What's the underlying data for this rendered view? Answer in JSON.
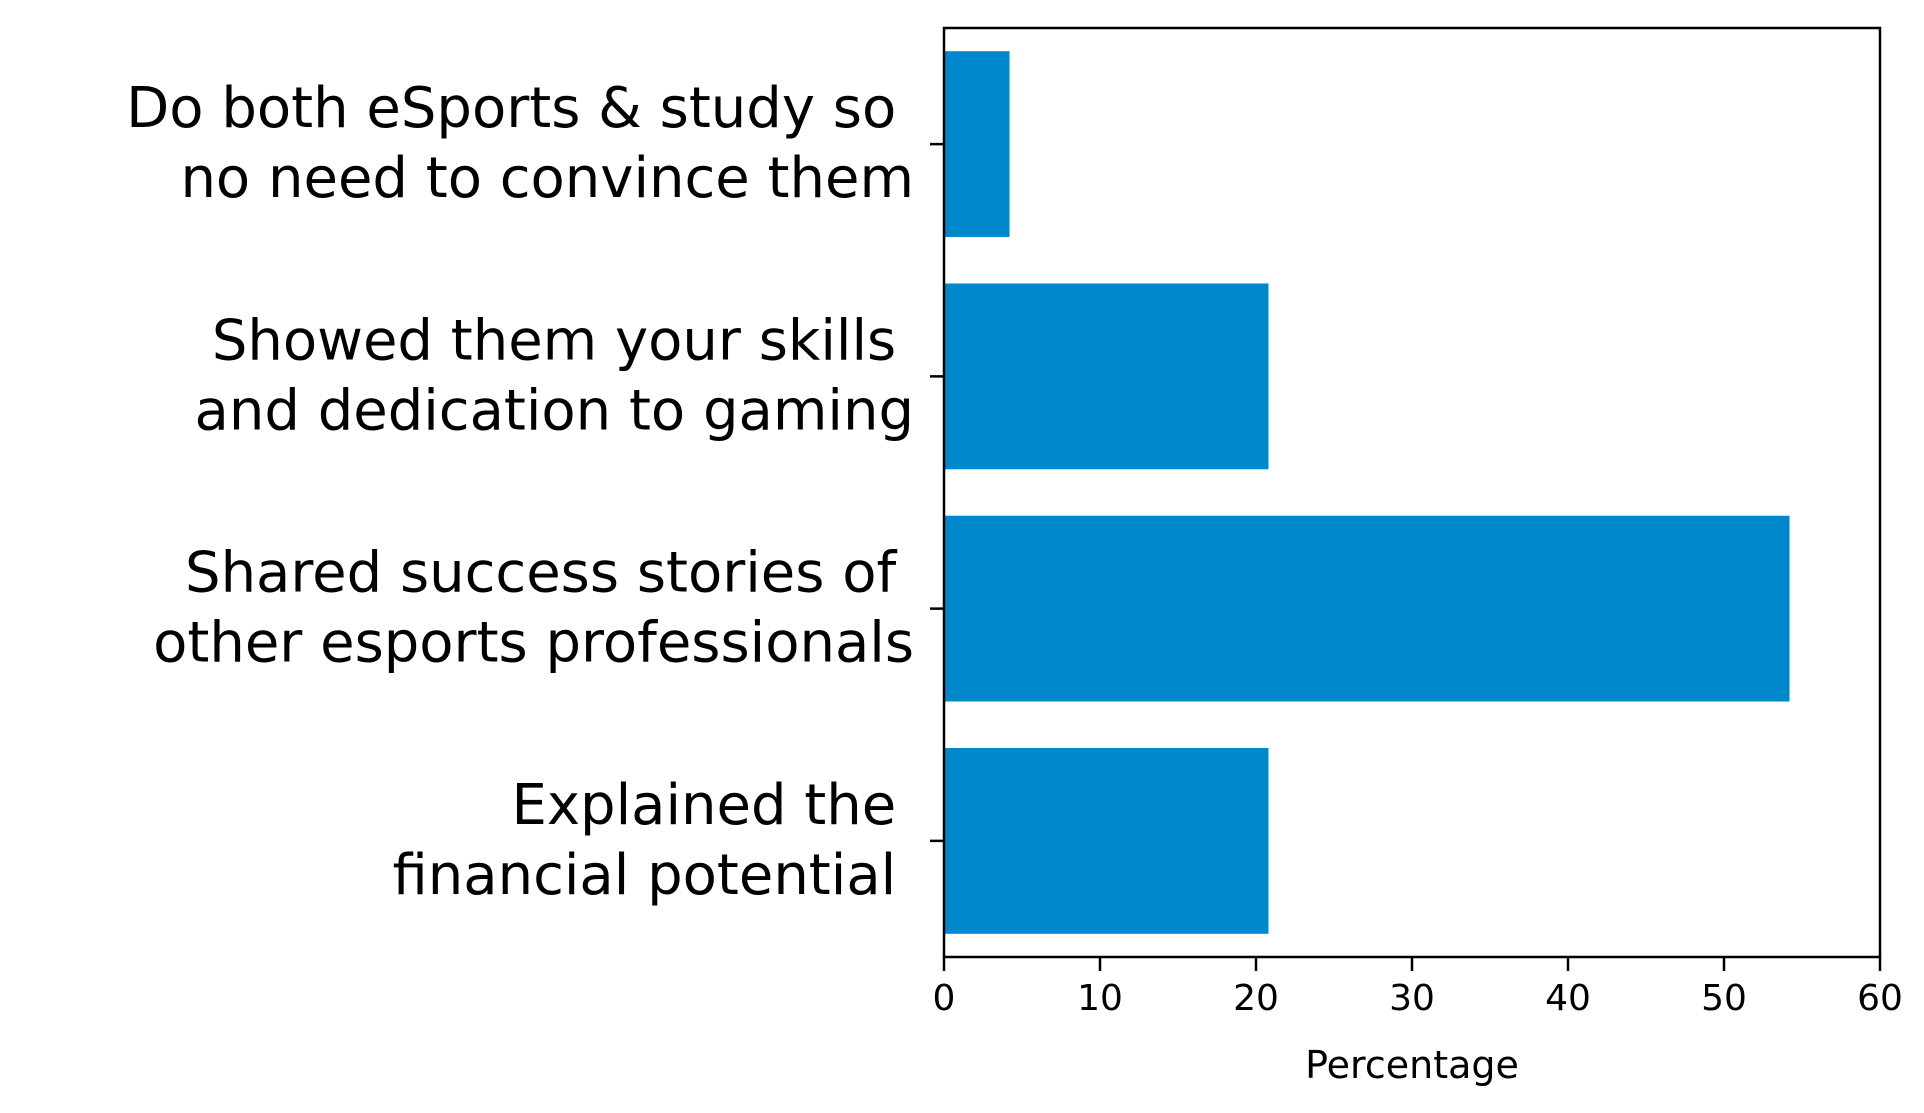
{
  "chart_data": {
    "type": "bar",
    "orientation": "horizontal",
    "categories": [
      [
        "Do both eSports & study so ",
        "no need to convince them"
      ],
      [
        "Showed them your skills ",
        "and dedication to gaming"
      ],
      [
        "Shared success stories of ",
        "other esports professionals"
      ],
      [
        "Explained the ",
        "financial potential "
      ]
    ],
    "values": [
      4.2,
      20.8,
      54.2,
      20.8
    ],
    "title": "",
    "xlabel": "Percentage",
    "ylabel": "",
    "xlim": [
      0,
      60
    ],
    "xticks": [
      "0",
      "10",
      "20",
      "30",
      "40",
      "50",
      "60"
    ],
    "grid": false,
    "bar_color": "#0088cc"
  }
}
